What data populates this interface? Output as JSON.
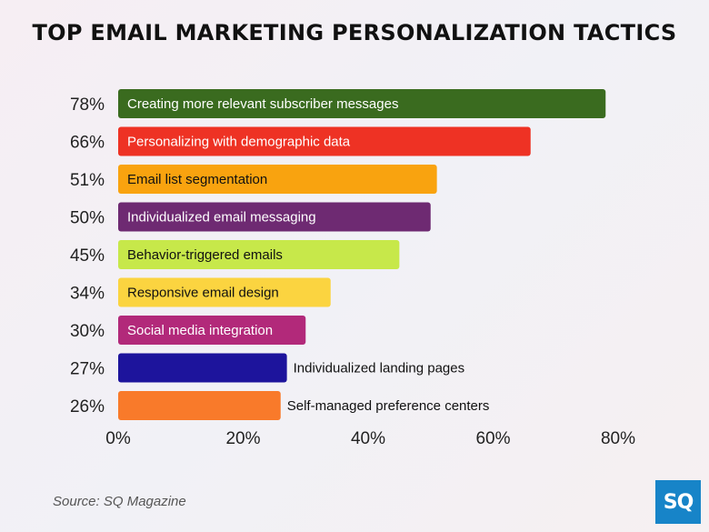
{
  "chart_data": {
    "type": "bar",
    "orientation": "horizontal",
    "title": "TOP EMAIL MARKETING PERSONALIZATION TACTICS",
    "categories": [
      "Creating more relevant subscriber messages",
      "Personalizing with demographic data",
      "Email list segmentation",
      "Individualized email messaging",
      "Behavior-triggered emails",
      "Responsive email design",
      "Social media integration",
      "Individualized landing pages",
      "Self-managed preference centers"
    ],
    "values": [
      78,
      66,
      51,
      50,
      45,
      34,
      30,
      27,
      26
    ],
    "value_labels": [
      "78%",
      "66%",
      "51%",
      "50%",
      "45%",
      "34%",
      "30%",
      "27%",
      "26%"
    ],
    "colors": [
      "#3a6b1f",
      "#ee3224",
      "#f9a30f",
      "#6e2a72",
      "#c7e84a",
      "#fbd440",
      "#b2297a",
      "#1d149c",
      "#f97a2a"
    ],
    "label_colors": [
      "#ffffff",
      "#ffffff",
      "#111111",
      "#ffffff",
      "#111111",
      "#111111",
      "#ffffff",
      "#111111",
      "#111111"
    ],
    "label_inside": [
      true,
      true,
      true,
      true,
      true,
      true,
      true,
      false,
      false
    ],
    "xticks": [
      "0%",
      "20%",
      "40%",
      "60%",
      "80%"
    ],
    "xlim": [
      0,
      80
    ],
    "grid": false,
    "legend": "none"
  },
  "source": "Source: SQ Magazine",
  "logo": "SQ"
}
